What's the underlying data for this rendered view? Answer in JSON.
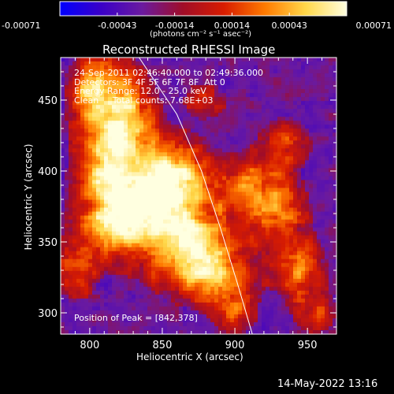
{
  "colorbar": {
    "ticks": [
      "-0.00071",
      "-0.00043",
      "-0.00014",
      "0.00014",
      "0.00043",
      "0.00071"
    ],
    "unit_label": "(photons cm⁻² s⁻¹ asec⁻²)",
    "colormap": [
      "#0000ff",
      "#3a00c8",
      "#6a1aa0",
      "#a00d28",
      "#d81c00",
      "#ff7a00",
      "#ffd84a",
      "#ffffe0"
    ]
  },
  "chart_data": {
    "type": "heatmap",
    "title": "Reconstructed RHESSI Image",
    "xlabel": "Heliocentric X (arcsec)",
    "ylabel": "Heliocentric Y (arcsec)",
    "xlim": [
      780,
      970
    ],
    "ylim": [
      285,
      480
    ],
    "x_ticks": [
      800,
      850,
      900,
      950
    ],
    "y_ticks": [
      300,
      350,
      400,
      450
    ],
    "zlim": [
      -0.00071,
      0.00071
    ],
    "limb_curve": [
      [
        834,
        480
      ],
      [
        860,
        440
      ],
      [
        877,
        400
      ],
      [
        890,
        360
      ],
      [
        902,
        320
      ],
      [
        912,
        285
      ]
    ],
    "peak_position": [
      842,
      378
    ],
    "annotations": [
      "24-Sep-2011 02:46:40.000 to 02:49:36.000",
      "Detectors: 3F 4F 5F 6F 7F 8F  Att 0",
      "Energy Range: 12.0 - 25.0 keV",
      "Clean     Total counts: 7.68E+03"
    ],
    "peak_text": "Position of Peak = [842,378]"
  },
  "footer": {
    "timestamp": "14-May-2022 13:16"
  }
}
